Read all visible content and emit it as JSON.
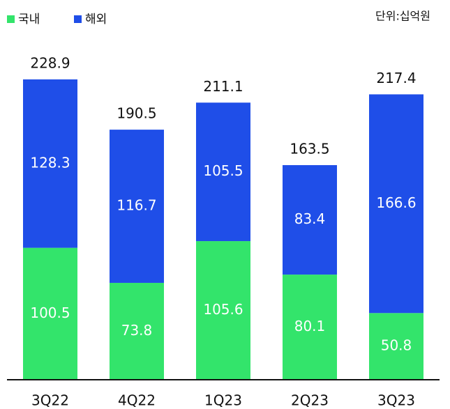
{
  "chart_data": {
    "type": "stacked_bar",
    "unit": "단위:십억원",
    "categories": [
      "3Q22",
      "4Q22",
      "1Q23",
      "2Q23",
      "3Q23"
    ],
    "series": [
      {
        "name": "국내",
        "color": "#33e46b",
        "values": [
          100.5,
          73.8,
          105.6,
          80.1,
          50.8
        ]
      },
      {
        "name": "해외",
        "color": "#1f4ee8",
        "values": [
          128.3,
          116.7,
          105.5,
          83.4,
          166.6
        ]
      }
    ],
    "totals": [
      228.9,
      190.5,
      211.1,
      163.5,
      217.4
    ],
    "ylim": [
      0,
      250
    ]
  }
}
